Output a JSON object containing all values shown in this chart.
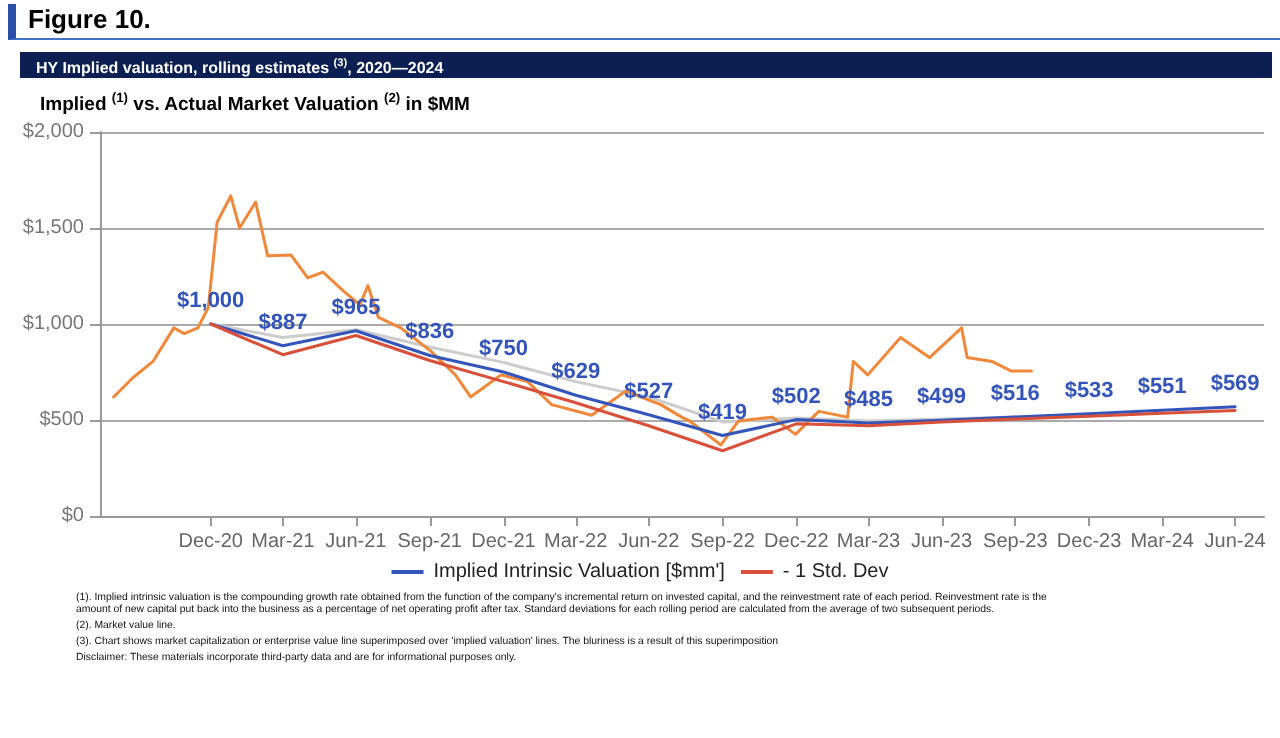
{
  "chart_data": {
    "type": "line",
    "title": "Figure 10.",
    "subtitle": "HY Implied valuation, rolling estimates $^{(3)}$, 2020—2024",
    "ylabel": "Implied $^{(1)}$ vs. Actual Market Valuation $^{(2)}$ in $MM",
    "xlim": [
      "2020-08-15",
      "2024-08-05"
    ],
    "xticks": [
      {
        "value": "2020-12-31",
        "label": "Dec-20"
      },
      {
        "value": "2021-03-31",
        "label": "Mar-21"
      },
      {
        "value": "2021-06-30",
        "label": "Jun-21"
      },
      {
        "value": "2021-09-30",
        "label": "Sep-21"
      },
      {
        "value": "2021-12-31",
        "label": "Dec-21"
      },
      {
        "value": "2022-03-31",
        "label": "Mar-22"
      },
      {
        "value": "2022-06-30",
        "label": "Jun-22"
      },
      {
        "value": "2022-09-30",
        "label": "Sep-22"
      },
      {
        "value": "2022-12-31",
        "label": "Dec-22"
      },
      {
        "value": "2023-03-31",
        "label": "Mar-23"
      },
      {
        "value": "2023-06-30",
        "label": "Jun-23"
      },
      {
        "value": "2023-09-30",
        "label": "Sep-23"
      },
      {
        "value": "2023-12-31",
        "label": "Dec-23"
      },
      {
        "value": "2024-03-31",
        "label": "Mar-24"
      },
      {
        "value": "2024-06-30",
        "label": "Jun-24"
      }
    ],
    "ylim": [
      0,
      2000
    ],
    "yticks": [
      {
        "value": 0,
        "label": "$0"
      },
      {
        "value": 500,
        "label": "$500"
      },
      {
        "value": 1000,
        "label": "$1,000"
      },
      {
        "value": 1500,
        "label": "$1,500"
      },
      {
        "value": 2000,
        "label": "$2,000"
      }
    ],
    "grid": "y",
    "legend": "bottom",
    "marker": "none",
    "line_style": "solid",
    "series": [
      {
        "color": "#cccccc",
        "x": [
          "2020-12-31",
          "2021-03-31",
          "2021-06-30",
          "2021-09-30",
          "2021-12-31",
          "2022-03-31",
          "2022-06-30",
          "2022-09-30",
          "2022-12-31",
          "2023-03-31",
          "2023-06-30",
          "2023-09-30"
        ],
        "values": [
          1000,
          930,
          970,
          880,
          800,
          700,
          620,
          490,
          510,
          495,
          505,
          516
        ]
      },
      {
        "color": "#f0883a",
        "x": [
          "2020-09-01",
          "2020-09-25",
          "2020-10-20",
          "2020-11-15",
          "2020-11-28",
          "2020-12-15",
          "2020-12-28",
          "2021-01-08",
          "2021-01-25",
          "2021-02-05",
          "2021-02-25",
          "2021-03-12",
          "2021-04-10",
          "2021-05-01",
          "2021-05-20",
          "2021-06-15",
          "2021-07-05",
          "2021-07-15",
          "2021-07-28",
          "2021-08-25",
          "2021-10-01",
          "2021-11-01",
          "2021-11-20",
          "2021-12-28",
          "2022-01-30",
          "2022-03-01",
          "2022-04-20",
          "2022-06-01",
          "2022-07-15",
          "2022-08-10",
          "2022-08-20",
          "2022-09-28",
          "2022-10-20",
          "2022-12-01",
          "2022-12-30",
          "2023-01-28",
          "2023-03-05",
          "2023-03-12",
          "2023-03-30",
          "2023-05-10",
          "2023-06-15",
          "2023-07-25",
          "2023-08-01",
          "2023-09-01",
          "2023-09-25",
          "2023-10-20"
        ],
        "values": [
          620,
          720,
          805,
          980,
          950,
          980,
          1085,
          1530,
          1667,
          1500,
          1635,
          1355,
          1360,
          1240,
          1270,
          1170,
          1100,
          1200,
          1035,
          980,
          860,
          735,
          620,
          735,
          700,
          580,
          525,
          650,
          580,
          515,
          495,
          370,
          495,
          515,
          425,
          545,
          515,
          805,
          735,
          930,
          825,
          980,
          825,
          805,
          755,
          755
        ]
      },
      {
        "name": "Implied Intrinsic Valuation [$mm']",
        "color": "#3355bb",
        "x": [
          "2020-12-31",
          "2021-03-31",
          "2021-06-30",
          "2021-09-30",
          "2021-12-31",
          "2022-03-31",
          "2022-06-30",
          "2022-09-30",
          "2022-12-31",
          "2023-03-31",
          "2023-06-30",
          "2023-09-30",
          "2023-12-31",
          "2024-03-31",
          "2024-06-30"
        ],
        "values": [
          1000,
          887,
          965,
          836,
          750,
          629,
          527,
          419,
          502,
          485,
          499,
          516,
          533,
          551,
          569
        ],
        "value_labels": [
          "$1,000",
          "$887",
          "$965",
          "$836",
          "$750",
          "$629",
          "$527",
          "$419",
          "$502",
          "$485",
          "$499",
          "$516",
          "$533",
          "$551",
          "$569"
        ]
      },
      {
        "name": "- 1 Std. Dev",
        "color": "#d9503a",
        "x": [
          "2020-12-31",
          "2021-03-31",
          "2021-06-30",
          "2021-09-30",
          "2021-12-31",
          "2022-03-31",
          "2022-06-30",
          "2022-09-30",
          "2022-12-31",
          "2023-03-31",
          "2023-06-30",
          "2023-09-30",
          "2023-12-31",
          "2024-03-31",
          "2024-06-30"
        ],
        "values": [
          1000,
          840,
          940,
          810,
          700,
          590,
          470,
          340,
          480,
          470,
          490,
          505,
          520,
          535,
          550
        ]
      }
    ],
    "annotations": [
      "(1). Implied intrinsic valuation is the compounding growth rate obtained from the function of the company's incremental return on invested capital, and the reinvestment rate of each period. Reinvestment rate is the amount of new capital put back into the business as a percentage of net operating profit after tax. Standard deviations for each rolling period are calculated from the average of two subsequent periods.",
      "(2). Market value line.",
      "(3). Chart shows market capitalization or enterprise value line superimposed over 'implied valuation' lines. The bluriness is a result of this superimposition",
      "Disclaimer: These materials incorporate third-party data and are for informational purposes only."
    ]
  }
}
